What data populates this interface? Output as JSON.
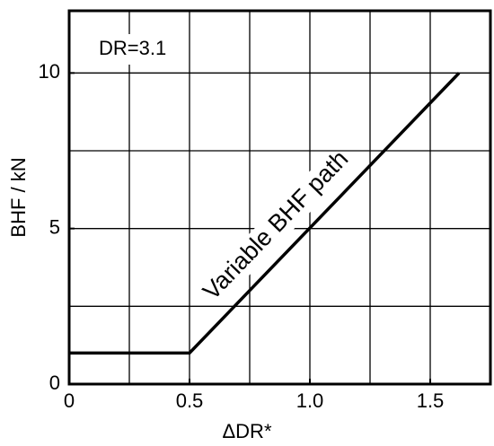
{
  "chart_data": {
    "type": "line",
    "x_label": "ΔDR*",
    "y_label": "BHF / kN",
    "annotations": [
      "DR=3.1",
      "Variable BHF path"
    ],
    "x": [
      0,
      0.5,
      1.62
    ],
    "series": [
      {
        "name": "Variable BHF path",
        "color": "#000000",
        "values": [
          1.0,
          1.0,
          10
        ]
      }
    ],
    "xlim": [
      0,
      1.75
    ],
    "ylim": [
      0,
      12
    ],
    "xticks": [
      0,
      0.5,
      {
        "value": 1,
        "label": "1.0"
      },
      1.5
    ],
    "yticks": [
      0,
      5,
      10
    ],
    "xgrid": [
      0.25,
      0.5,
      0.75,
      1,
      1.25,
      1.5
    ],
    "ygrid": [
      2.5,
      5,
      7.5,
      10
    ],
    "grid": true
  }
}
